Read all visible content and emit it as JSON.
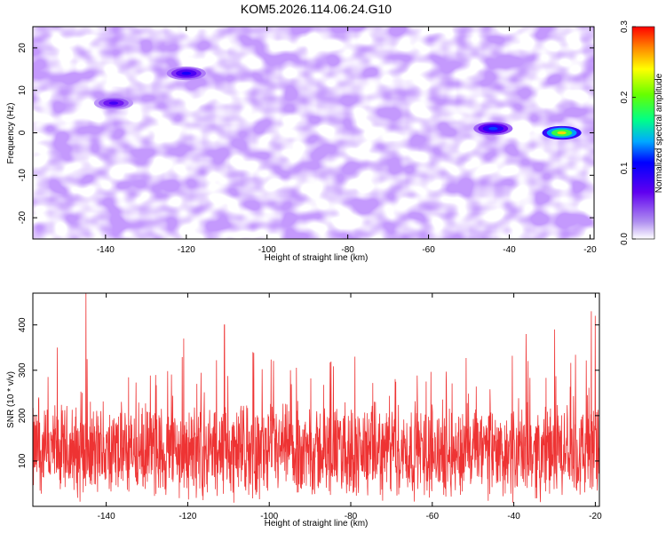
{
  "title": "KOM5.2026.114.06.24.G10",
  "chart_data": [
    {
      "type": "heatmap",
      "xlabel": "Height of straight line (km)",
      "ylabel": "Frequency (Hz)",
      "xlim": [
        -158,
        -19
      ],
      "ylim": [
        -25,
        25
      ],
      "xticks": [
        -140,
        -120,
        -100,
        -80,
        -60,
        -40,
        -20
      ],
      "yticks": [
        -20,
        -10,
        0,
        10,
        20
      ],
      "colorbar": {
        "label": "Normalized spectral amplitude",
        "range": [
          0.0,
          0.3
        ],
        "ticks": [
          0.0,
          0.1,
          0.2,
          0.3
        ]
      },
      "hotspots": [
        {
          "x": -27,
          "y": 0,
          "amplitude": 0.25
        },
        {
          "x": -44,
          "y": 1,
          "amplitude": 0.12
        },
        {
          "x": -120,
          "y": 14,
          "amplitude": 0.1
        },
        {
          "x": -138,
          "y": 7,
          "amplitude": 0.08
        }
      ]
    },
    {
      "type": "line",
      "xlabel": "Height of straight line (km)",
      "ylabel": "SNR (10 * v/v)",
      "xlim": [
        -158,
        -19
      ],
      "ylim": [
        0,
        470
      ],
      "xticks": [
        -140,
        -120,
        -100,
        -80,
        -60,
        -40,
        -20
      ],
      "yticks": [
        100,
        200,
        300,
        400
      ],
      "series": [
        {
          "color": "#ee3333",
          "mean_level": 120,
          "peaks": [
            {
              "x": -145,
              "y": 470
            },
            {
              "x": -152,
              "y": 350
            },
            {
              "x": -121,
              "y": 370
            },
            {
              "x": -111,
              "y": 400
            },
            {
              "x": -104,
              "y": 340
            },
            {
              "x": -79,
              "y": 330
            },
            {
              "x": -37,
              "y": 380
            },
            {
              "x": -30,
              "y": 390
            },
            {
              "x": -21,
              "y": 430
            },
            {
              "x": -20,
              "y": 420
            }
          ]
        }
      ]
    }
  ]
}
